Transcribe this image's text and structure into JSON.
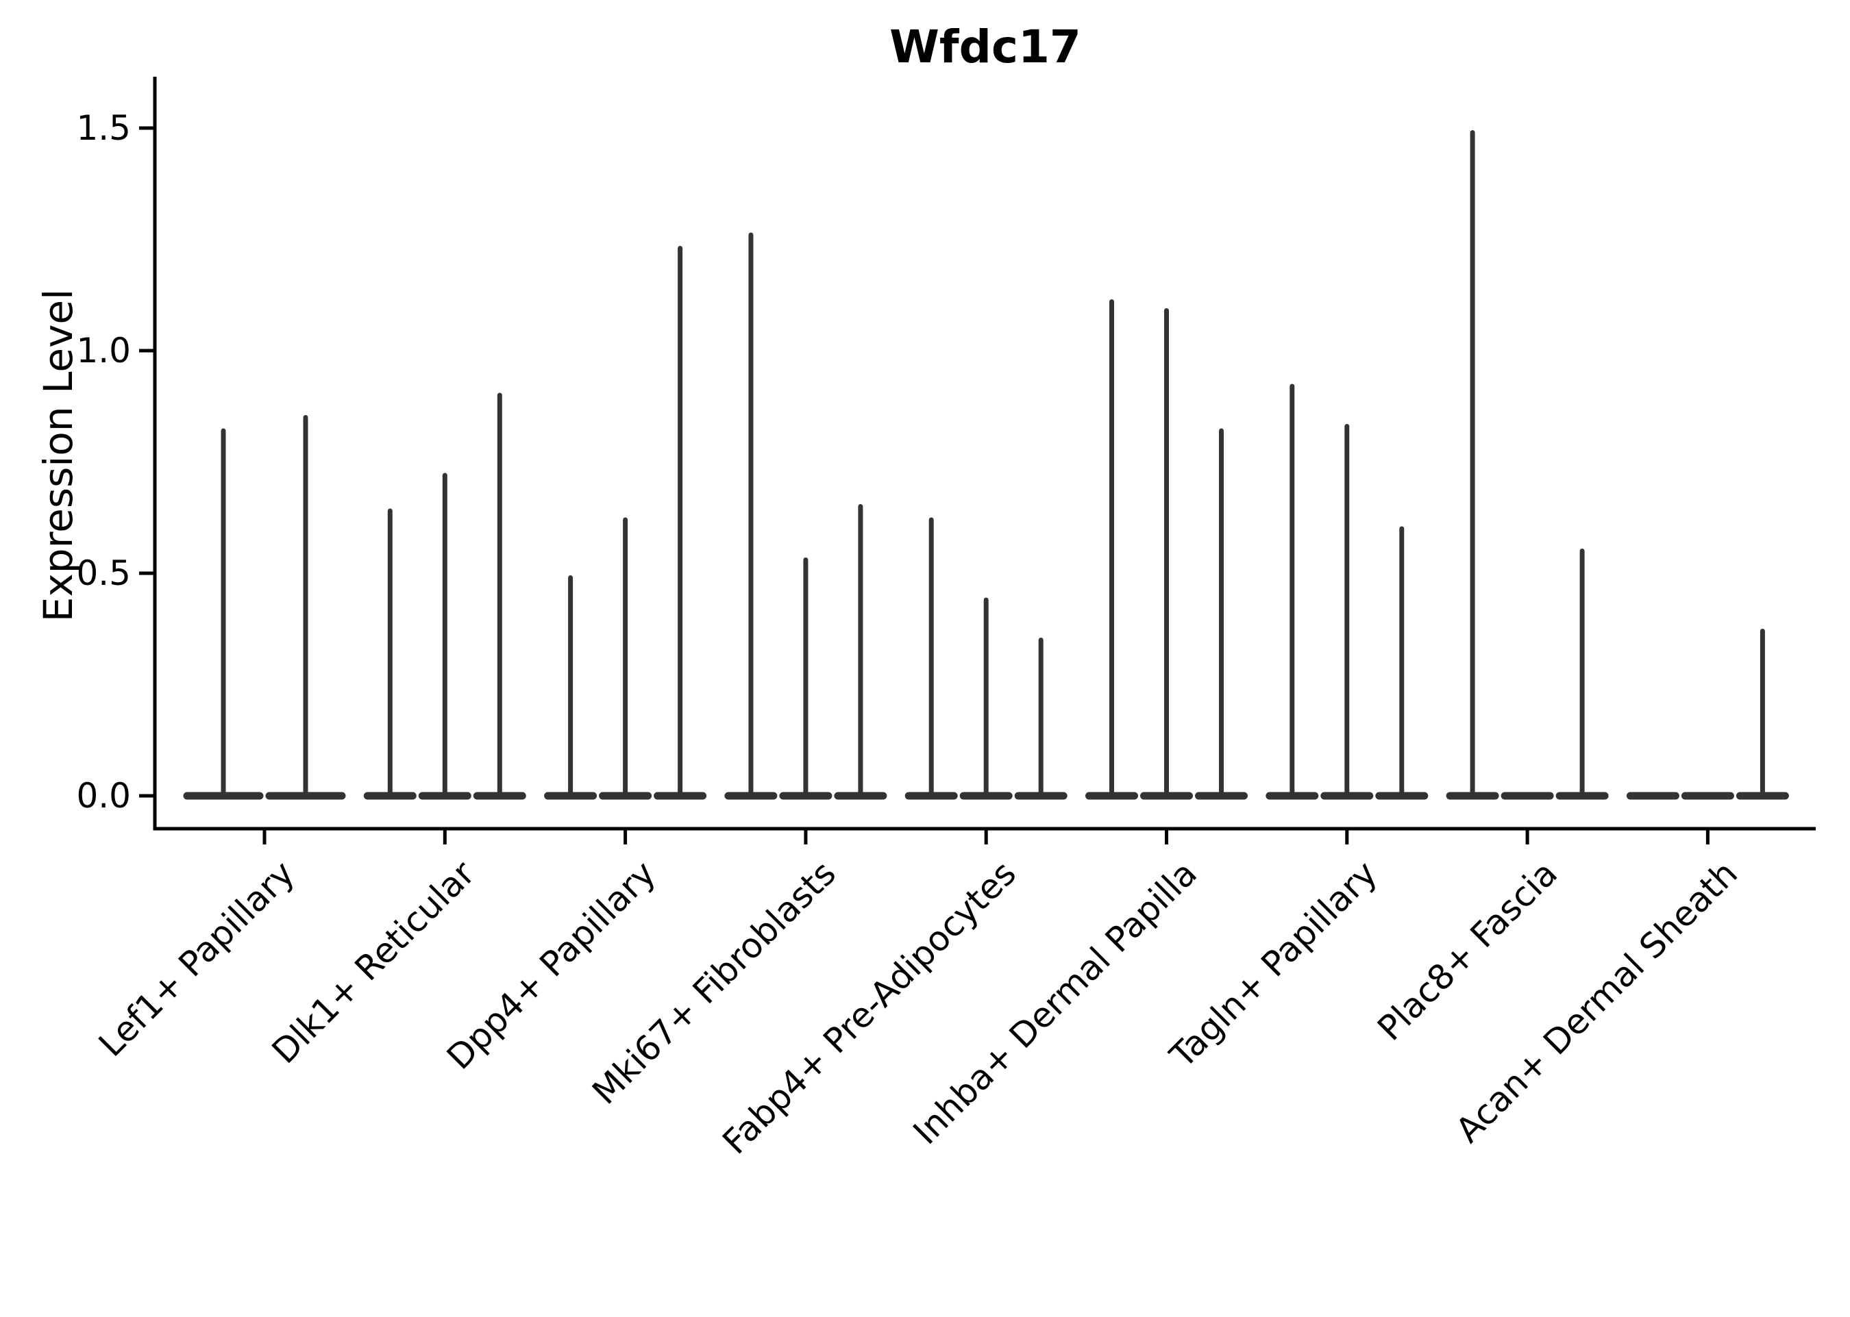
{
  "chart_data": {
    "type": "violin",
    "title": "Wfdc17",
    "xlabel": "",
    "ylabel": "Expression Level",
    "yticks": [
      0.0,
      0.5,
      1.0,
      1.5
    ],
    "ytick_labels": [
      "0.0",
      "0.5",
      "1.0",
      "1.5"
    ],
    "ylim": [
      -0.07,
      1.62
    ],
    "grid": false,
    "legend": null,
    "style_note": "Gene expression violin plot; each category shows narrow spike-shaped violins (mass concentrated at 0 with a thin line up to the max expression value); flat violin bases merge into a bar at y=0",
    "groups": [
      {
        "category": "Lef1+ Papillary",
        "violin_max_values": [
          0.82,
          0.85
        ]
      },
      {
        "category": "Dlk1+ Reticular",
        "violin_max_values": [
          0.64,
          0.72,
          0.9
        ]
      },
      {
        "category": "Dpp4+ Papillary",
        "violin_max_values": [
          0.49,
          0.62,
          1.23
        ]
      },
      {
        "category": "Mki67+ Fibroblasts",
        "violin_max_values": [
          1.26,
          0.53,
          0.65
        ]
      },
      {
        "category": "Fabp4+ Pre-Adipocytes",
        "violin_max_values": [
          0.62,
          0.44,
          0.35
        ]
      },
      {
        "category": "Inhba+ Dermal Papilla",
        "violin_max_values": [
          1.11,
          1.09,
          0.82
        ]
      },
      {
        "category": "Tagln+ Papillary",
        "violin_max_values": [
          0.92,
          0.83,
          0.6
        ]
      },
      {
        "category": "Plac8+ Fascia",
        "violin_max_values": [
          1.49,
          0.0,
          0.55
        ]
      },
      {
        "category": "Acan+ Dermal Sheath",
        "violin_max_values": [
          0.0,
          0.0,
          0.37
        ]
      }
    ],
    "colors": {
      "violin": "#333333",
      "axis": "#000000",
      "text": "#000000",
      "background": "#ffffff"
    }
  }
}
